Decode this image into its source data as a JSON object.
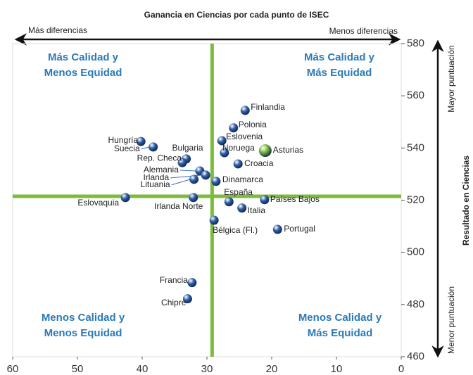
{
  "chart_data": {
    "type": "scatter",
    "title": "Ganancia en Ciencias por cada punto de ISEC",
    "ylabel": "Resultado en Ciencias",
    "xlim": [
      60,
      0
    ],
    "ylim": [
      460,
      580
    ],
    "xticks": [
      60,
      50,
      40,
      30,
      20,
      10,
      0
    ],
    "yticks": [
      460,
      480,
      500,
      520,
      540,
      560,
      580
    ],
    "arrow_labels": {
      "left": "Más diferencias",
      "right": "Menos diferencias",
      "top": "Mayor puntuación",
      "bottom": "Menor puntuación"
    },
    "quadrants": {
      "top_left": [
        "Más Calidad y",
        "Menos Equidad"
      ],
      "top_right": [
        "Más Calidad y",
        "Más Equidad"
      ],
      "bottom_left": [
        "Menos Calidad y",
        "Menos Equidad"
      ],
      "bottom_right": [
        "Menos Calidad y",
        "Más Equidad"
      ]
    },
    "reference_x": 29.2,
    "reference_y": 521.5,
    "reference_color": "#7dbb3c",
    "labels": [
      "Finlandia",
      "Polonia",
      "Eslovenia",
      "Noruega",
      "Asturias",
      "Croacia",
      "Hungría",
      "Suecia",
      "Bulgaria",
      "Rep. Checa",
      "Alemania",
      "Irlanda",
      "Lituania",
      "Dinamarca",
      "Eslovaquia",
      "Irlanda Norte",
      "España",
      "Países Bajos",
      "Italia",
      "Bélgica (Fl.)",
      "Portugal",
      "Francia",
      "Chipre"
    ],
    "x": [
      24.1,
      25.9,
      27.7,
      27.3,
      21.0,
      25.2,
      40.2,
      38.3,
      33.2,
      33.8,
      31.1,
      30.2,
      32.0,
      28.6,
      42.6,
      32.1,
      26.6,
      21.1,
      24.6,
      28.9,
      19.1,
      32.3,
      33.0
    ],
    "y": [
      554.4,
      547.7,
      542.8,
      538.2,
      539.0,
      533.9,
      542.5,
      540.4,
      535.8,
      534.4,
      531.2,
      529.6,
      528.0,
      527.2,
      521.0,
      521.0,
      519.4,
      520.2,
      517.0,
      512.3,
      508.8,
      488.4,
      482.2
    ],
    "colors": [
      "#2f5fa8",
      "#2f5fa8",
      "#2f5fa8",
      "#2f5fa8",
      "#7dbb3c",
      "#2f5fa8",
      "#2f5fa8",
      "#2f5fa8",
      "#2f5fa8",
      "#2f5fa8",
      "#2f5fa8",
      "#2f5fa8",
      "#2f5fa8",
      "#2f5fa8",
      "#2f5fa8",
      "#2f5fa8",
      "#2f5fa8",
      "#2f5fa8",
      "#2f5fa8",
      "#2f5fa8",
      "#2f5fa8",
      "#2f5fa8",
      "#2f5fa8"
    ]
  }
}
